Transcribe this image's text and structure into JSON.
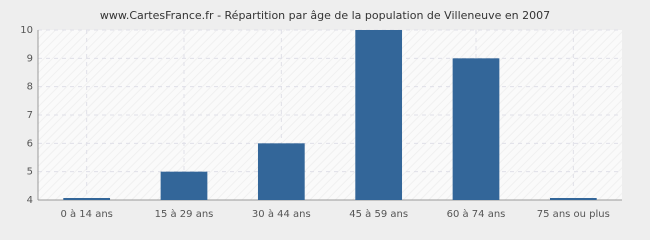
{
  "chart_data": {
    "type": "bar",
    "title": "www.CartesFrance.fr - Répartition par âge de la population de Villeneuve en 2007",
    "categories": [
      "0 à 14 ans",
      "15 à 29 ans",
      "30 à 44 ans",
      "45 à 59 ans",
      "60 à 74 ans",
      "75 ans ou plus"
    ],
    "values": [
      4,
      5,
      6,
      10,
      9,
      4
    ],
    "color": "#336699",
    "ylim": [
      4,
      10
    ],
    "yticks": [
      4,
      5,
      6,
      7,
      8,
      9,
      10
    ],
    "grid": true
  }
}
